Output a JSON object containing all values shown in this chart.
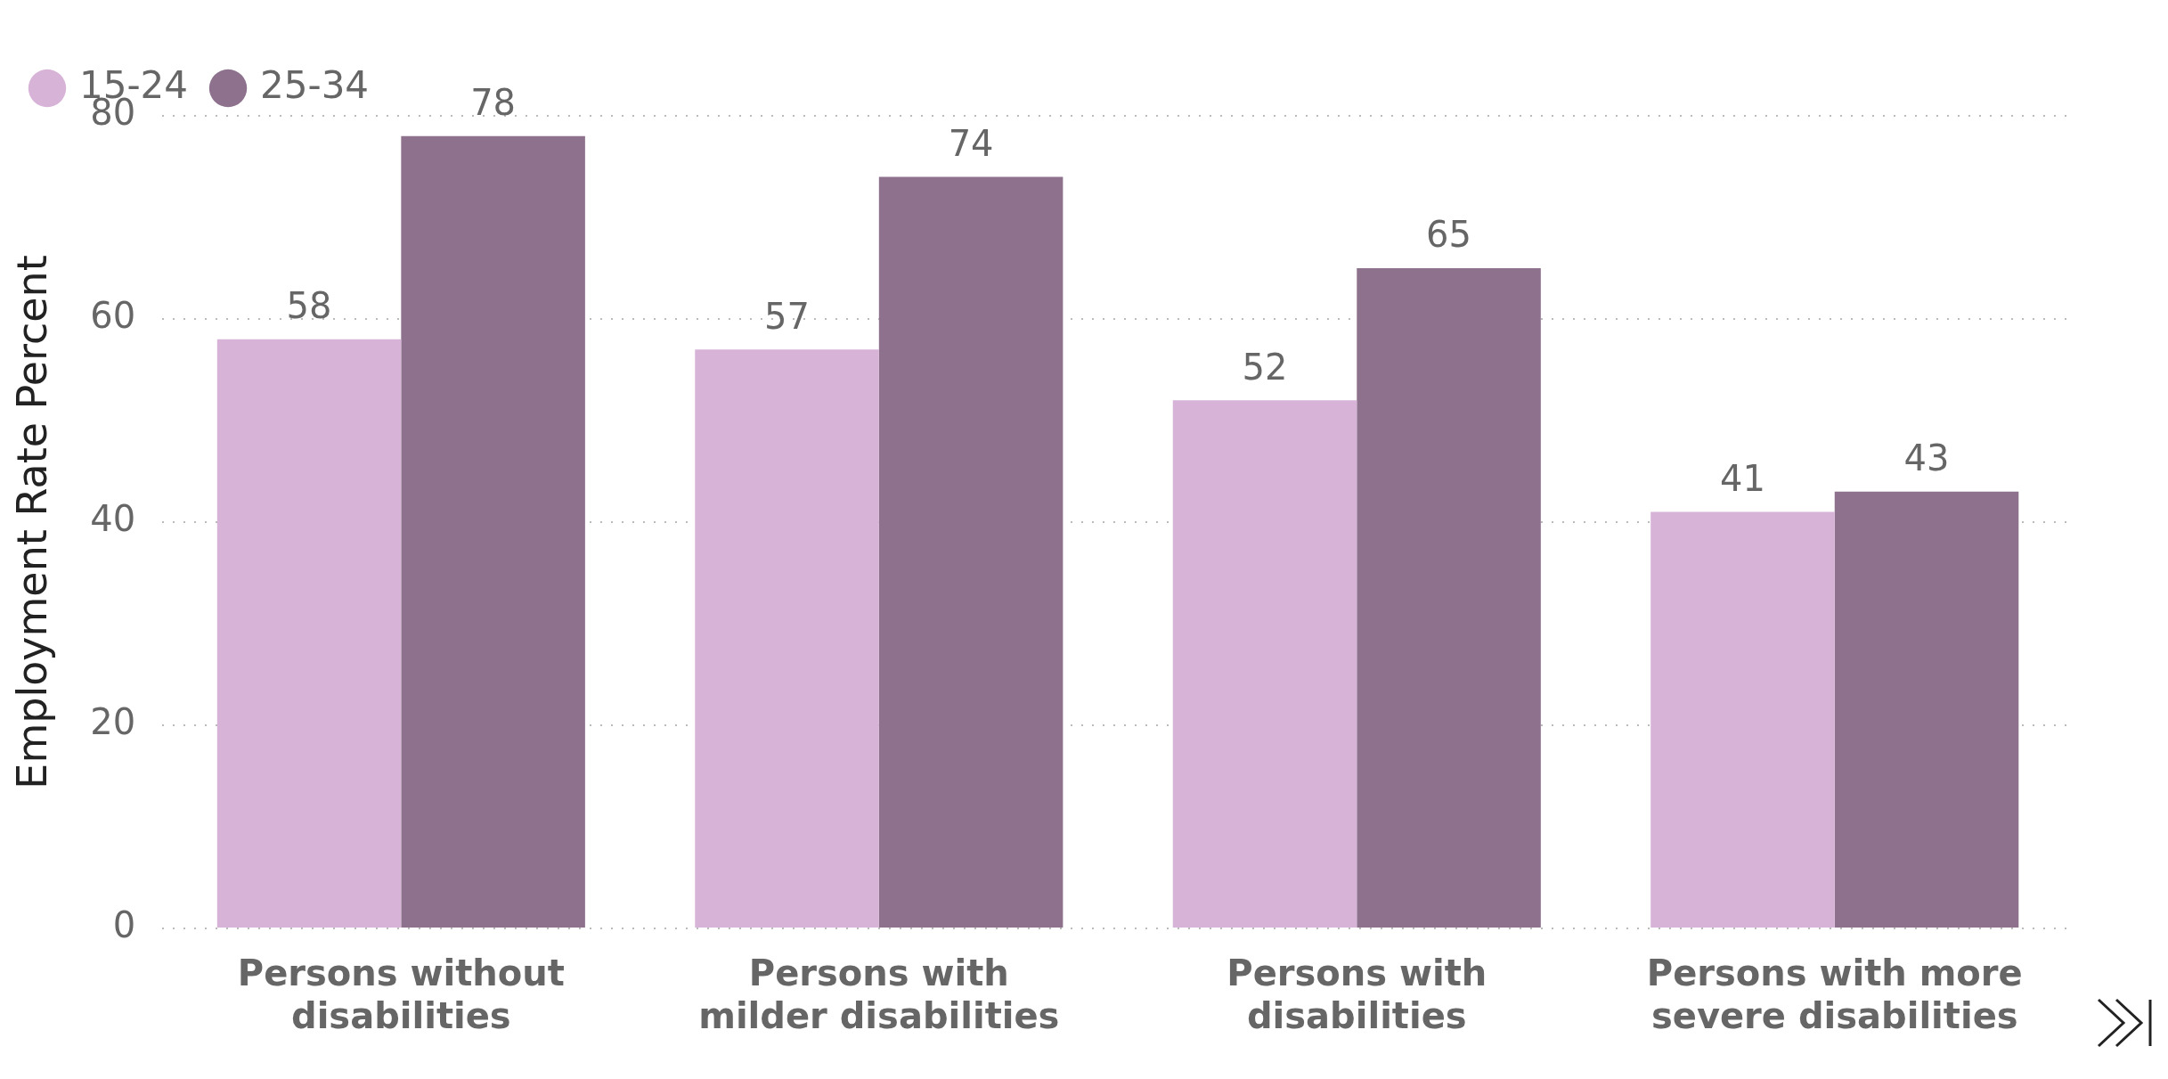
{
  "chart_data": {
    "type": "bar",
    "ylabel": "Employment Rate Percent",
    "categories": [
      "Persons without disabilities",
      "Persons with milder disabilities",
      "Persons with disabilities",
      "Persons with more severe disabilities"
    ],
    "series": [
      {
        "name": "15-24",
        "color": "#d7b3d7",
        "values": [
          58,
          57,
          52,
          41
        ]
      },
      {
        "name": "25-34",
        "color": "#8d718d",
        "values": [
          78,
          74,
          65,
          43
        ]
      }
    ],
    "ylim": [
      0,
      80
    ],
    "yticks": [
      0,
      20,
      40,
      60,
      80
    ],
    "grid": "y",
    "legend": "top left",
    "data_labels": true
  }
}
